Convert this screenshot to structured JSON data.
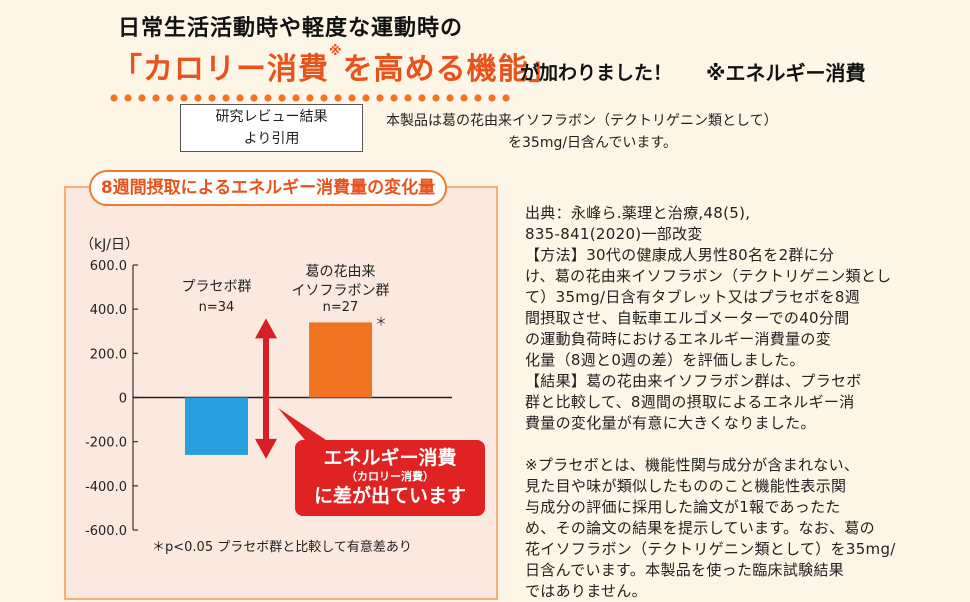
{
  "header": {
    "line1": "日常生活活動時や軽度な運動時の",
    "highlight_main": "「カロリー消費",
    "highlight_sup": "※",
    "highlight_rest": "を高める機能」",
    "tail": "が加わりました！",
    "note": "※エネルギー消費"
  },
  "reference": {
    "box_line1": "研究レビュー結果",
    "box_line2": "より引用",
    "text_line1": "本製品は葛の花由来イソフラボン（テクトリゲニン類として）",
    "text_line2": "を35mg/日含んでいます。"
  },
  "chart_title": "8週間摂取によるエネルギー消費量の変化量",
  "chart_data": {
    "type": "bar",
    "categories": [
      "プラセボ群",
      "葛の花由来イソフラボン群"
    ],
    "values": [
      -260,
      340
    ],
    "category_lines": [
      [
        "プラセボ群"
      ],
      [
        "葛の花由来",
        "イソフラボン群"
      ]
    ],
    "n_labels": [
      "n=34",
      "n=27"
    ],
    "significance_marks": [
      "",
      "＊"
    ],
    "colors": [
      "#2a9fdd",
      "#f07422"
    ],
    "unit": "（kJ/日）",
    "ylim": [
      -600,
      600
    ],
    "yticks": [
      600,
      400,
      200,
      0,
      -200,
      -400,
      -600
    ],
    "ytick_labels": [
      "600.0",
      "400.0",
      "200.0",
      "0",
      "-200.0",
      "-400.0",
      "-600.0"
    ],
    "footnote": "＊p<0.05 プラセボ群と比較して有意差あり"
  },
  "callout": {
    "line1": "エネルギー消費",
    "line2": "（カロリー消費）",
    "line3": "に差が出ています"
  },
  "source_text": {
    "lines": [
      "出典：永峰ら.薬理と治療,48(5),",
      "835-841(2020)一部改変",
      "【方法】30代の健康成人男性80名を2群に分",
      "け、葛の花由来イソフラボン（テクトリゲニン類とし",
      "て）35mg/日含有タブレット又はプラセボを8週",
      "間摂取させ、自転車エルゴメーターでの40分間",
      "の運動負荷時におけるエネルギー消費量の変",
      "化量（8週と0週の差）を評価しました。",
      "【結果】葛の花由来イソフラボン群は、プラセボ",
      "群と比較して、8週間の摂取によるエネルギー消",
      "費量の変化量が有意に大きくなりました。"
    ],
    "note_lines": [
      "※プラセボとは、機能性関与成分が含まれない、",
      "見た目や味が類似したもののこと機能性表示関",
      "与成分の評価に採用した論文が1報であったた",
      "め、その論文の結果を提示しています。なお、葛の",
      "花イソフラボン（テクトリゲニン類として）を35mg/",
      "日含んでいます。本製品を使った臨床試験結果",
      "ではありません。"
    ]
  },
  "colors": {
    "accent_orange": "#e8531d",
    "callout_red": "#e02222",
    "arrow_red": "#d81f26",
    "panel_pink": "#fbe8df"
  }
}
